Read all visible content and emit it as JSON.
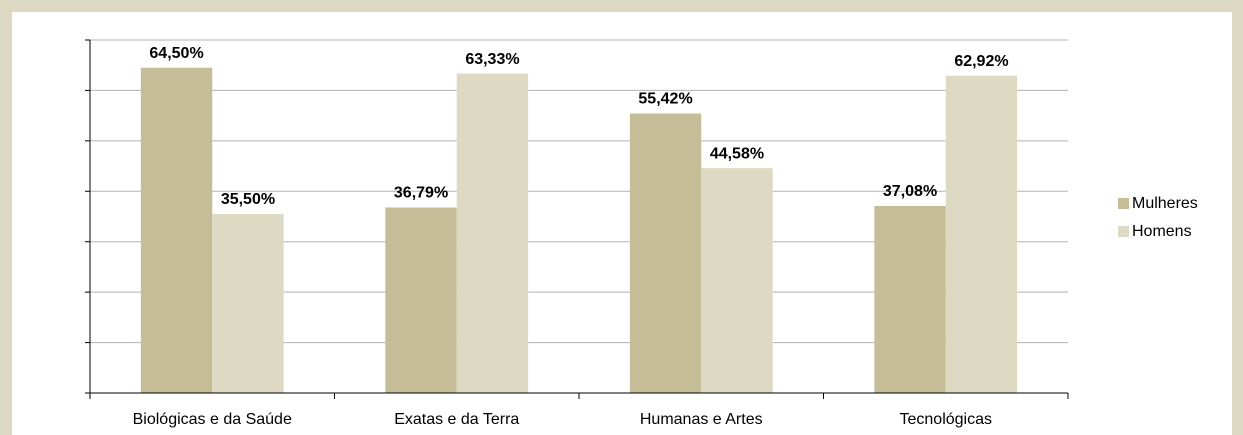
{
  "chart_data": {
    "type": "bar",
    "categories": [
      "Biológicas e da Saúde",
      "Exatas e da Terra",
      "Humanas  e Artes",
      "Tecnológicas"
    ],
    "series": [
      {
        "name": "Mulheres",
        "color": "#c4bd97",
        "values": [
          64.5,
          36.79,
          55.42,
          37.08
        ],
        "value_labels": [
          "64,50%",
          "36,79%",
          "55,42%",
          "37,08%"
        ]
      },
      {
        "name": "Homens",
        "color": "#ddd9c3",
        "values": [
          35.5,
          63.33,
          44.58,
          62.92
        ],
        "value_labels": [
          "35,50%",
          "63,33%",
          "44,58%",
          "62,92%"
        ]
      }
    ],
    "ylim": [
      0,
      70
    ],
    "yticks": [
      0,
      10,
      20,
      30,
      40,
      50,
      60,
      70
    ],
    "grid": true,
    "legend": "right"
  }
}
